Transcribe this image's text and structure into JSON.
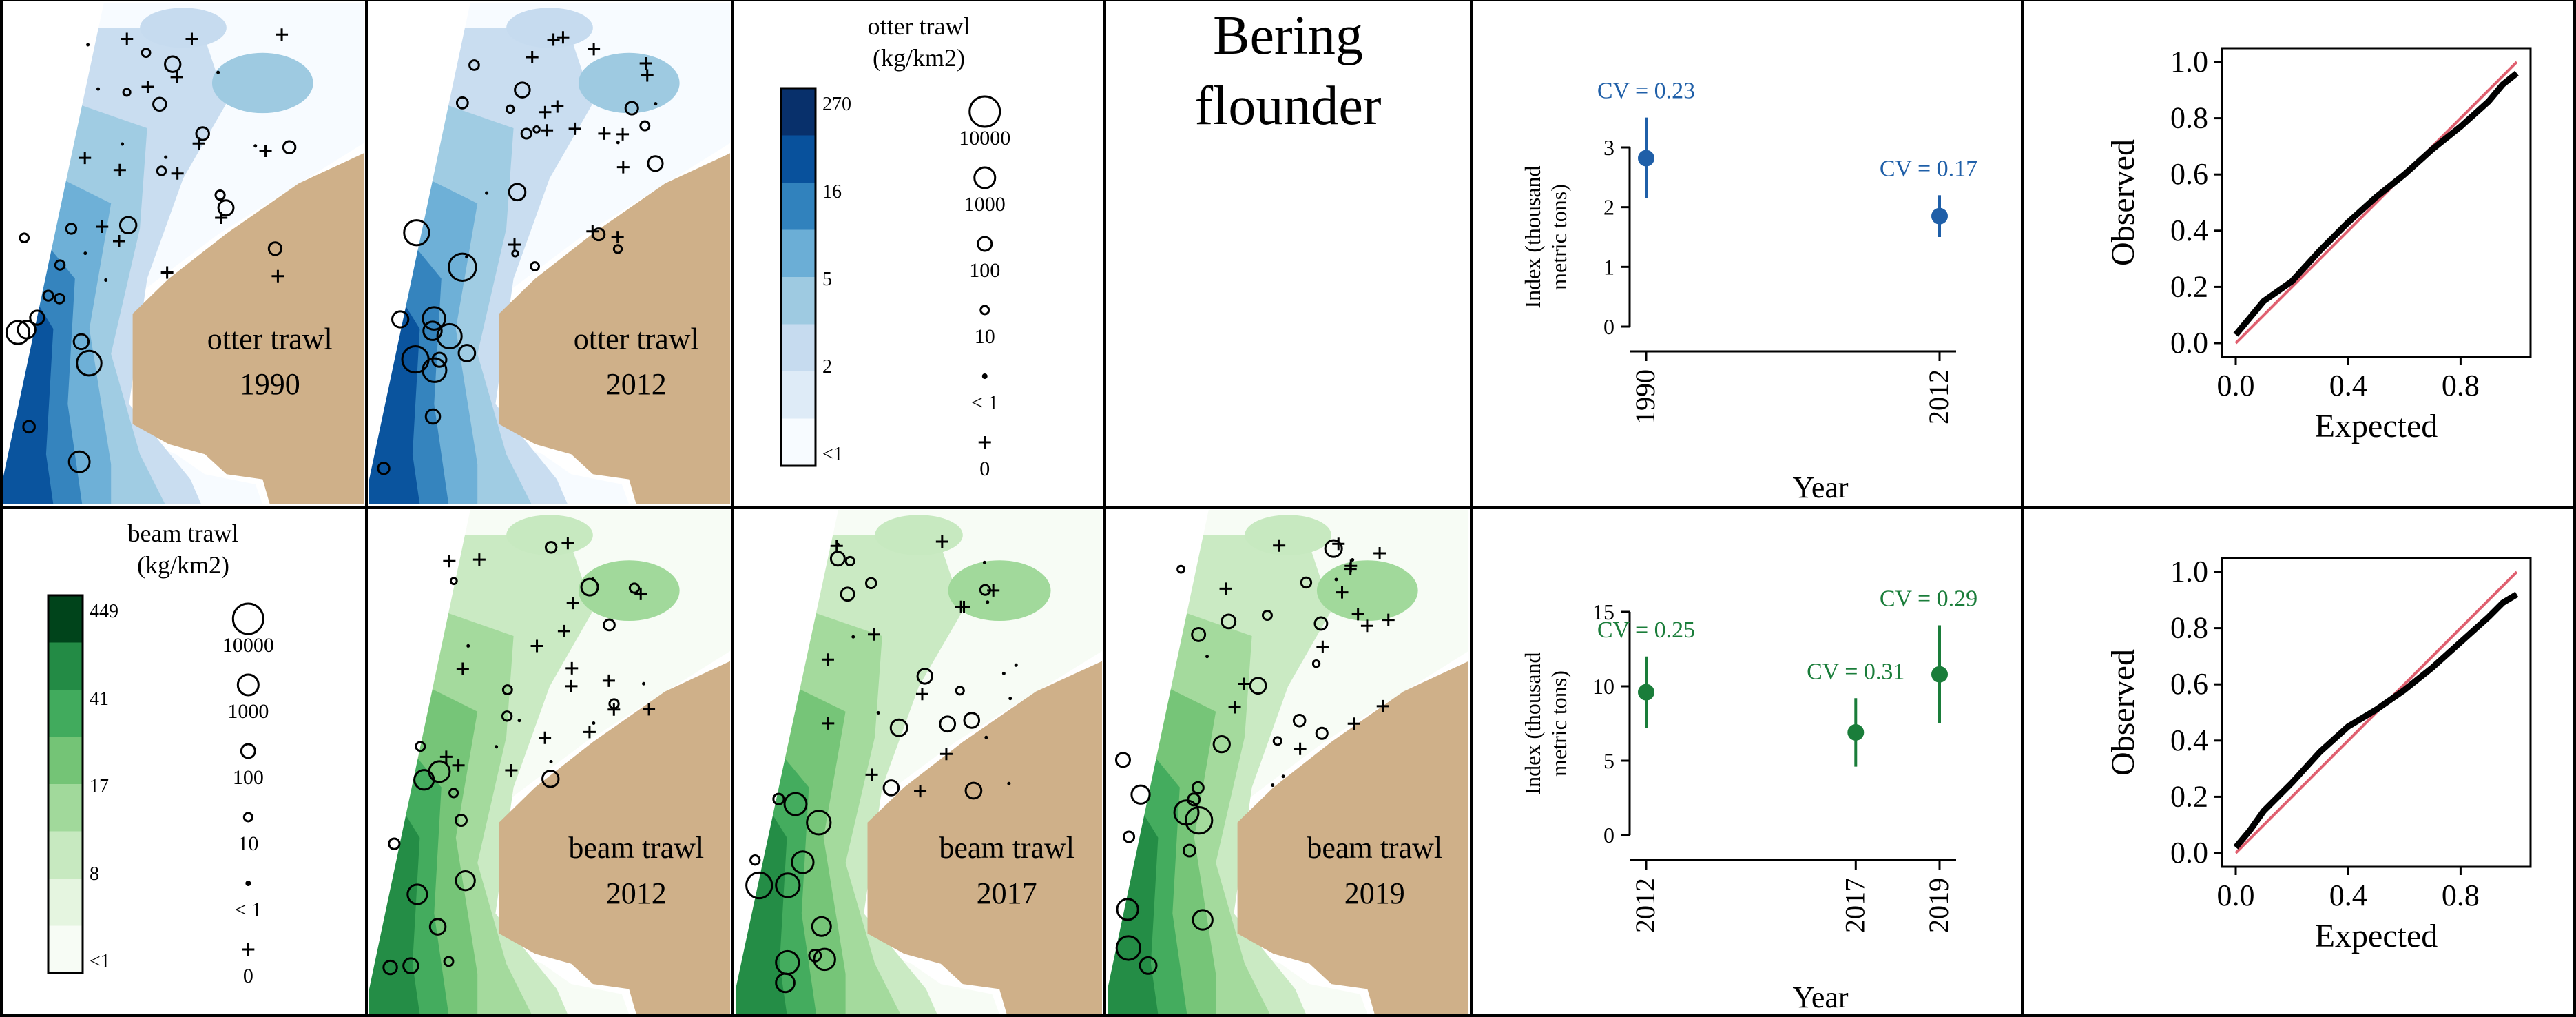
{
  "figure": {
    "title_line1": "Bering",
    "title_line2": "flounder",
    "colors": {
      "land": "#cfb089",
      "otter_ramp": [
        "#f7fbff",
        "#deebf7",
        "#c6dbef",
        "#9ecae1",
        "#6baed6",
        "#3182bd",
        "#08519c",
        "#08306b"
      ],
      "beam_ramp": [
        "#f7fcf5",
        "#e5f5e0",
        "#c7e9c0",
        "#a1d99b",
        "#74c476",
        "#41ab5d",
        "#238b45",
        "#00441b"
      ],
      "otter_point": "#1f5fa8",
      "beam_point": "#1a7d3a",
      "qq_line": "#e06070"
    }
  },
  "maps": [
    {
      "id": "otter-1990",
      "gear": "otter",
      "label_line1": "otter trawl",
      "label_line2": "1990"
    },
    {
      "id": "otter-2012",
      "gear": "otter",
      "label_line1": "otter trawl",
      "label_line2": "2012"
    },
    {
      "id": "beam-2012",
      "gear": "beam",
      "label_line1": "beam trawl",
      "label_line2": "2012"
    },
    {
      "id": "beam-2017",
      "gear": "beam",
      "label_line1": "beam trawl",
      "label_line2": "2017"
    },
    {
      "id": "beam-2019",
      "gear": "beam",
      "label_line1": "beam trawl",
      "label_line2": "2019"
    }
  ],
  "legends": {
    "otter": {
      "title_line1": "otter trawl",
      "title_line2": "(kg/km2)",
      "color_labels": [
        "270",
        "16",
        "5",
        "2",
        "<1"
      ],
      "bubble_labels": [
        "10000",
        "1000",
        "100",
        "10",
        "< 1",
        "0"
      ]
    },
    "beam": {
      "title_line1": "beam trawl",
      "title_line2": "(kg/km2)",
      "color_labels": [
        "449",
        "41",
        "17",
        "8",
        "<1"
      ],
      "bubble_labels": [
        "10000",
        "1000",
        "100",
        "10",
        "< 1",
        "0"
      ]
    }
  },
  "chart_data": [
    {
      "type": "scatter",
      "id": "otter-index",
      "ylabel_line1": "Index (thousand",
      "ylabel_line2": "metric tons)",
      "xlabel": "Year",
      "ylim": [
        0,
        3
      ],
      "yticks": [
        0,
        1,
        2,
        3
      ],
      "x": [
        1990,
        2012
      ],
      "xtick_labels": [
        "1990",
        "2012"
      ],
      "xlim": [
        1990,
        2012
      ],
      "values": [
        2.82,
        1.85
      ],
      "lower": [
        2.15,
        1.5
      ],
      "upper": [
        3.5,
        2.2
      ],
      "annotations": [
        "CV = 0.23",
        "CV = 0.17"
      ]
    },
    {
      "type": "scatter",
      "id": "beam-index",
      "ylabel_line1": "Index (thousand",
      "ylabel_line2": "metric tons)",
      "xlabel": "Year",
      "ylim": [
        0,
        15
      ],
      "yticks": [
        0,
        5,
        10,
        15
      ],
      "x": [
        2012,
        2017,
        2019
      ],
      "xtick_labels": [
        "2012",
        "2017",
        "2019"
      ],
      "xlim": [
        2012,
        2019
      ],
      "values": [
        9.6,
        6.9,
        10.8
      ],
      "lower": [
        7.2,
        4.6,
        7.5
      ],
      "upper": [
        12.0,
        9.2,
        14.1
      ],
      "annotations": [
        "CV = 0.25",
        "CV = 0.31",
        "CV = 0.29"
      ]
    },
    {
      "type": "scatter",
      "id": "otter-qq",
      "xlabel": "Expected",
      "ylabel": "Observed",
      "xlim": [
        0,
        1
      ],
      "ylim": [
        0,
        1
      ],
      "xticks": [
        "0.0",
        "0.4",
        "0.8"
      ],
      "yticks": [
        "0.0",
        "0.2",
        "0.4",
        "0.6",
        "0.8",
        "1.0"
      ],
      "reference_line": [
        [
          0,
          0
        ],
        [
          1,
          1
        ]
      ],
      "curve_x": [
        0.0,
        0.05,
        0.1,
        0.2,
        0.3,
        0.4,
        0.5,
        0.6,
        0.7,
        0.8,
        0.9,
        0.95,
        1.0
      ],
      "curve_y": [
        0.03,
        0.09,
        0.15,
        0.22,
        0.33,
        0.43,
        0.52,
        0.6,
        0.69,
        0.77,
        0.86,
        0.92,
        0.96
      ]
    },
    {
      "type": "scatter",
      "id": "beam-qq",
      "xlabel": "Expected",
      "ylabel": "Observed",
      "xlim": [
        0,
        1
      ],
      "ylim": [
        0,
        1
      ],
      "xticks": [
        "0.0",
        "0.4",
        "0.8"
      ],
      "yticks": [
        "0.0",
        "0.2",
        "0.4",
        "0.6",
        "0.8",
        "1.0"
      ],
      "reference_line": [
        [
          0,
          0
        ],
        [
          1,
          1
        ]
      ],
      "curve_x": [
        0.0,
        0.05,
        0.1,
        0.2,
        0.3,
        0.4,
        0.5,
        0.6,
        0.7,
        0.8,
        0.9,
        0.95,
        1.0
      ],
      "curve_y": [
        0.02,
        0.08,
        0.15,
        0.25,
        0.36,
        0.45,
        0.51,
        0.58,
        0.66,
        0.75,
        0.84,
        0.89,
        0.92
      ]
    }
  ]
}
